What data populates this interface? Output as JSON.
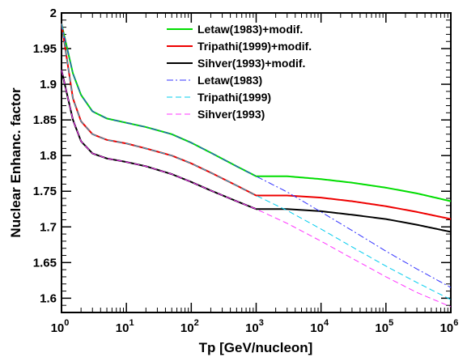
{
  "chart_data": {
    "type": "line",
    "xlabel": "Tp [GeV/nucleon]",
    "ylabel": "Nuclear Enhanc. factor",
    "xscale": "log",
    "xlim": [
      1,
      1000000
    ],
    "ylim": [
      1.58,
      2.0
    ],
    "grid": false,
    "legend_position": "top-center",
    "x_ticks": [
      {
        "value": 1,
        "base": "10",
        "exp": "0"
      },
      {
        "value": 10,
        "base": "10",
        "exp": "1"
      },
      {
        "value": 100,
        "base": "10",
        "exp": "2"
      },
      {
        "value": 1000,
        "base": "10",
        "exp": "3"
      },
      {
        "value": 10000,
        "base": "10",
        "exp": "4"
      },
      {
        "value": 100000,
        "base": "10",
        "exp": "5"
      },
      {
        "value": 1000000,
        "base": "10",
        "exp": "6"
      }
    ],
    "y_ticks": [
      {
        "value": 1.6,
        "label": "1.6"
      },
      {
        "value": 1.65,
        "label": "1.65"
      },
      {
        "value": 1.7,
        "label": "1.7"
      },
      {
        "value": 1.75,
        "label": "1.75"
      },
      {
        "value": 1.8,
        "label": "1.8"
      },
      {
        "value": 1.85,
        "label": "1.85"
      },
      {
        "value": 1.9,
        "label": "1.9"
      },
      {
        "value": 1.95,
        "label": "1.95"
      },
      {
        "value": 2.0,
        "label": "2"
      }
    ],
    "series": [
      {
        "name": "Letaw(1983)+modif.",
        "color": "#00dd00",
        "style": "solid",
        "width": 2,
        "x": [
          1,
          1.5,
          2,
          3,
          5,
          10,
          20,
          50,
          100,
          200,
          500,
          1000,
          3000,
          10000,
          30000,
          100000,
          300000,
          1000000
        ],
        "y": [
          1.985,
          1.915,
          1.885,
          1.862,
          1.852,
          1.846,
          1.84,
          1.83,
          1.818,
          1.804,
          1.785,
          1.771,
          1.771,
          1.767,
          1.762,
          1.755,
          1.747,
          1.736
        ]
      },
      {
        "name": "Tripathi(1999)+modif.",
        "color": "#ee0000",
        "style": "solid",
        "width": 2,
        "x": [
          1,
          1.5,
          2,
          3,
          5,
          10,
          20,
          50,
          100,
          200,
          500,
          1000,
          3000,
          10000,
          30000,
          100000,
          300000,
          1000000
        ],
        "y": [
          1.985,
          1.88,
          1.848,
          1.83,
          1.822,
          1.817,
          1.81,
          1.8,
          1.789,
          1.776,
          1.758,
          1.744,
          1.744,
          1.741,
          1.736,
          1.729,
          1.721,
          1.711
        ]
      },
      {
        "name": "Sihver(1993)+modif.",
        "color": "#000000",
        "style": "solid",
        "width": 2,
        "x": [
          1,
          1.5,
          2,
          3,
          5,
          10,
          20,
          50,
          100,
          200,
          500,
          1000,
          3000,
          10000,
          30000,
          100000,
          300000,
          1000000
        ],
        "y": [
          1.92,
          1.85,
          1.82,
          1.803,
          1.796,
          1.791,
          1.785,
          1.774,
          1.763,
          1.751,
          1.736,
          1.725,
          1.725,
          1.722,
          1.717,
          1.711,
          1.703,
          1.693
        ]
      },
      {
        "name": "Letaw(1983)",
        "color": "#3333ff",
        "style": "dashdot",
        "width": 1,
        "x": [
          1,
          1.5,
          2,
          3,
          5,
          10,
          20,
          50,
          100,
          200,
          500,
          1000,
          3000,
          10000,
          30000,
          100000,
          300000,
          1000000
        ],
        "y": [
          1.985,
          1.915,
          1.885,
          1.862,
          1.852,
          1.846,
          1.84,
          1.83,
          1.818,
          1.804,
          1.785,
          1.771,
          1.749,
          1.721,
          1.695,
          1.666,
          1.641,
          1.615
        ]
      },
      {
        "name": "Tripathi(1999)",
        "color": "#00ccee",
        "style": "dashed",
        "width": 1,
        "x": [
          1,
          1.5,
          2,
          3,
          5,
          10,
          20,
          50,
          100,
          200,
          500,
          1000,
          3000,
          10000,
          30000,
          100000,
          300000,
          1000000
        ],
        "y": [
          1.985,
          1.88,
          1.848,
          1.83,
          1.822,
          1.817,
          1.81,
          1.8,
          1.789,
          1.776,
          1.758,
          1.744,
          1.723,
          1.697,
          1.672,
          1.645,
          1.622,
          1.598
        ]
      },
      {
        "name": "Sihver(1993)",
        "color": "#ff33ff",
        "style": "dashed",
        "width": 1,
        "x": [
          1,
          1.5,
          2,
          3,
          5,
          10,
          20,
          50,
          100,
          200,
          500,
          1000,
          3000,
          10000,
          30000,
          100000,
          300000,
          1000000
        ],
        "y": [
          1.92,
          1.85,
          1.82,
          1.803,
          1.796,
          1.791,
          1.785,
          1.774,
          1.763,
          1.751,
          1.736,
          1.725,
          1.705,
          1.68,
          1.656,
          1.63,
          1.608,
          1.588
        ]
      }
    ]
  }
}
